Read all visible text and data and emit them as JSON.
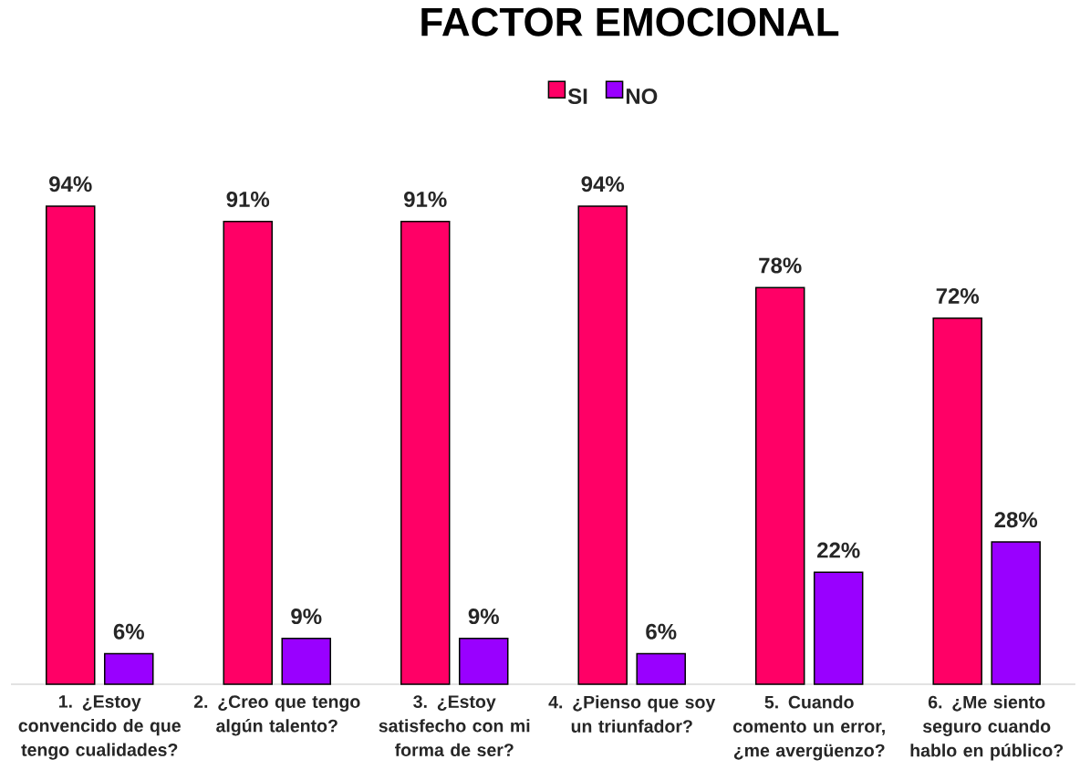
{
  "chart_data": {
    "type": "bar",
    "title": "FACTOR EMOCIONAL",
    "categories": [
      "1. ¿Estoy\nconvencido de que\ntengo cualidades?",
      "2. ¿Creo que tengo\nalgún talento?",
      "3. ¿Estoy\nsatisfecho con mi\nforma de ser?",
      "4. ¿Pienso que soy\nun triunfador?",
      "5.  Cuando\ncomento un error,\n¿me avergüenzo?",
      "6. ¿Me siento\nseguro cuando\nhablo en público?"
    ],
    "series": [
      {
        "name": "SI",
        "color": "#ff0066",
        "values": [
          94,
          91,
          91,
          94,
          78,
          72
        ],
        "value_labels": [
          "94%",
          "91%",
          "91%",
          "94%",
          "78%",
          "72%"
        ]
      },
      {
        "name": "NO",
        "color": "#9900ff",
        "values": [
          6,
          9,
          9,
          6,
          22,
          28
        ],
        "value_labels": [
          "6%",
          "9%",
          "9%",
          "6%",
          "22%",
          "28%"
        ]
      }
    ],
    "legend": "top",
    "tick_labels": "x"
  }
}
